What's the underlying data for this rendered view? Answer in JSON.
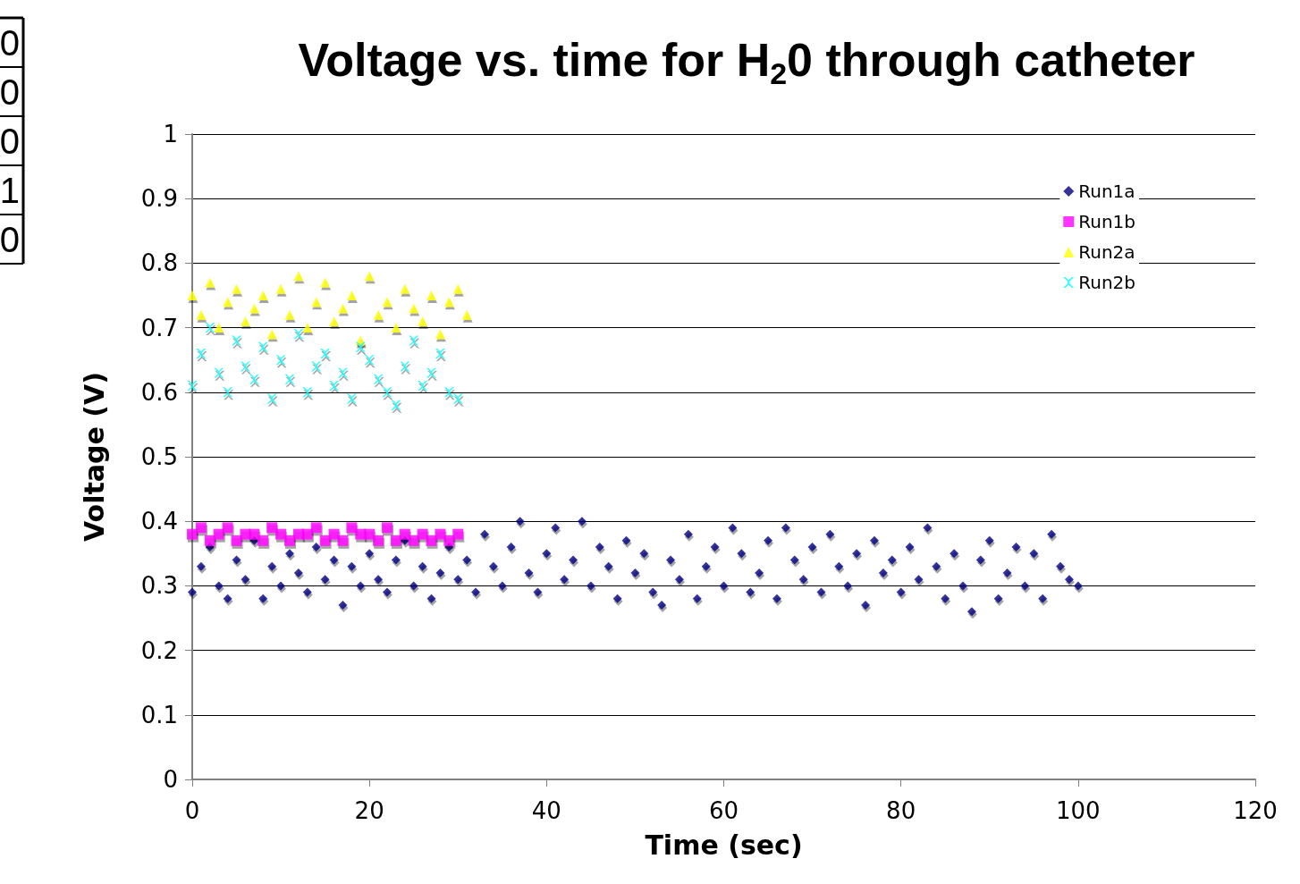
{
  "chart_data": {
    "type": "scatter",
    "title": "Voltage vs. time for H$_{2}$0 through catheter",
    "xlabel": "Time (sec)",
    "ylabel": "Voltage (V)",
    "xlim": [
      0,
      120
    ],
    "xticks": [
      0,
      20,
      40,
      60,
      80,
      100,
      120
    ],
    "ylim": [
      0,
      1
    ],
    "yticks": [
      0,
      0.1,
      0.2,
      0.3,
      0.4,
      0.5,
      0.6,
      0.7,
      0.8,
      0.9,
      1
    ],
    "grid": "y",
    "legend": "top right",
    "annotations": [
      "0",
      "0",
      "0",
      "1",
      "0"
    ],
    "series": [
      {
        "name": "Run1a",
        "color": "#000080",
        "marker": "diamond",
        "x": [
          0,
          1,
          2,
          3,
          4,
          5,
          6,
          7,
          8,
          9,
          10,
          11,
          12,
          13,
          14,
          15,
          16,
          17,
          18,
          19,
          20,
          21,
          22,
          23,
          24,
          25,
          26,
          27,
          28,
          29,
          30,
          31,
          32,
          33,
          34,
          35,
          36,
          37,
          38,
          39,
          40,
          41,
          42,
          43,
          44,
          45,
          46,
          47,
          48,
          49,
          50,
          51,
          52,
          53,
          54,
          55,
          56,
          57,
          58,
          59,
          60,
          61,
          62,
          63,
          64,
          65,
          66,
          67,
          68,
          69,
          70,
          71,
          72,
          73,
          74,
          75,
          76,
          77,
          78,
          79,
          80,
          81,
          82,
          83,
          84,
          85,
          86,
          87,
          88,
          89,
          90,
          91,
          92,
          93,
          94,
          95,
          96,
          97,
          98,
          99,
          100
        ],
        "values": [
          0.29,
          0.33,
          0.36,
          0.3,
          0.28,
          0.34,
          0.31,
          0.37,
          0.28,
          0.33,
          0.3,
          0.35,
          0.32,
          0.29,
          0.36,
          0.31,
          0.34,
          0.27,
          0.33,
          0.3,
          0.35,
          0.31,
          0.29,
          0.34,
          0.37,
          0.3,
          0.33,
          0.28,
          0.32,
          0.36,
          0.31,
          0.34,
          0.29,
          0.38,
          0.33,
          0.3,
          0.36,
          0.4,
          0.32,
          0.29,
          0.35,
          0.39,
          0.31,
          0.34,
          0.4,
          0.3,
          0.36,
          0.33,
          0.28,
          0.37,
          0.32,
          0.35,
          0.29,
          0.27,
          0.34,
          0.31,
          0.38,
          0.28,
          0.33,
          0.36,
          0.3,
          0.39,
          0.35,
          0.29,
          0.32,
          0.37,
          0.28,
          0.39,
          0.34,
          0.31,
          0.36,
          0.29,
          0.38,
          0.33,
          0.3,
          0.35,
          0.27,
          0.37,
          0.32,
          0.34,
          0.29,
          0.36,
          0.31,
          0.39,
          0.33,
          0.28,
          0.35,
          0.3,
          0.26,
          0.34,
          0.37,
          0.28,
          0.32,
          0.36,
          0.3,
          0.35,
          0.28,
          0.38,
          0.33,
          0.31,
          0.3
        ]
      },
      {
        "name": "Run1b",
        "color": "#ff00ff",
        "marker": "square",
        "x": [
          0,
          1,
          2,
          3,
          4,
          5,
          6,
          7,
          8,
          9,
          10,
          11,
          12,
          13,
          14,
          15,
          16,
          17,
          18,
          19,
          20,
          21,
          22,
          23,
          24,
          25,
          26,
          27,
          28,
          29,
          30
        ],
        "values": [
          0.38,
          0.39,
          0.37,
          0.38,
          0.39,
          0.37,
          0.38,
          0.38,
          0.37,
          0.39,
          0.38,
          0.37,
          0.38,
          0.38,
          0.39,
          0.37,
          0.38,
          0.37,
          0.39,
          0.38,
          0.38,
          0.37,
          0.39,
          0.37,
          0.38,
          0.37,
          0.38,
          0.37,
          0.38,
          0.37,
          0.38
        ]
      },
      {
        "name": "Run2a",
        "color": "#ffff00",
        "marker": "triangle",
        "x": [
          0,
          1,
          2,
          3,
          4,
          5,
          6,
          7,
          8,
          9,
          10,
          11,
          12,
          13,
          14,
          15,
          16,
          17,
          18,
          19,
          20,
          21,
          22,
          23,
          24,
          25,
          26,
          27,
          28,
          29,
          30,
          31
        ],
        "values": [
          0.75,
          0.72,
          0.77,
          0.7,
          0.74,
          0.76,
          0.71,
          0.73,
          0.75,
          0.69,
          0.76,
          0.72,
          0.78,
          0.7,
          0.74,
          0.77,
          0.71,
          0.73,
          0.75,
          0.68,
          0.78,
          0.72,
          0.74,
          0.7,
          0.76,
          0.73,
          0.71,
          0.75,
          0.69,
          0.74,
          0.76,
          0.72
        ]
      },
      {
        "name": "Run2b",
        "color": "#00ffff",
        "marker": "cross",
        "x": [
          0,
          1,
          2,
          3,
          4,
          5,
          6,
          7,
          8,
          9,
          10,
          11,
          12,
          13,
          14,
          15,
          16,
          17,
          18,
          19,
          20,
          21,
          22,
          23,
          24,
          25,
          26,
          27,
          28,
          29,
          30
        ],
        "values": [
          0.61,
          0.66,
          0.7,
          0.63,
          0.6,
          0.68,
          0.64,
          0.62,
          0.67,
          0.59,
          0.65,
          0.62,
          0.69,
          0.6,
          0.64,
          0.66,
          0.61,
          0.63,
          0.59,
          0.67,
          0.65,
          0.62,
          0.6,
          0.58,
          0.64,
          0.68,
          0.61,
          0.63,
          0.66,
          0.6,
          0.59
        ]
      }
    ]
  }
}
